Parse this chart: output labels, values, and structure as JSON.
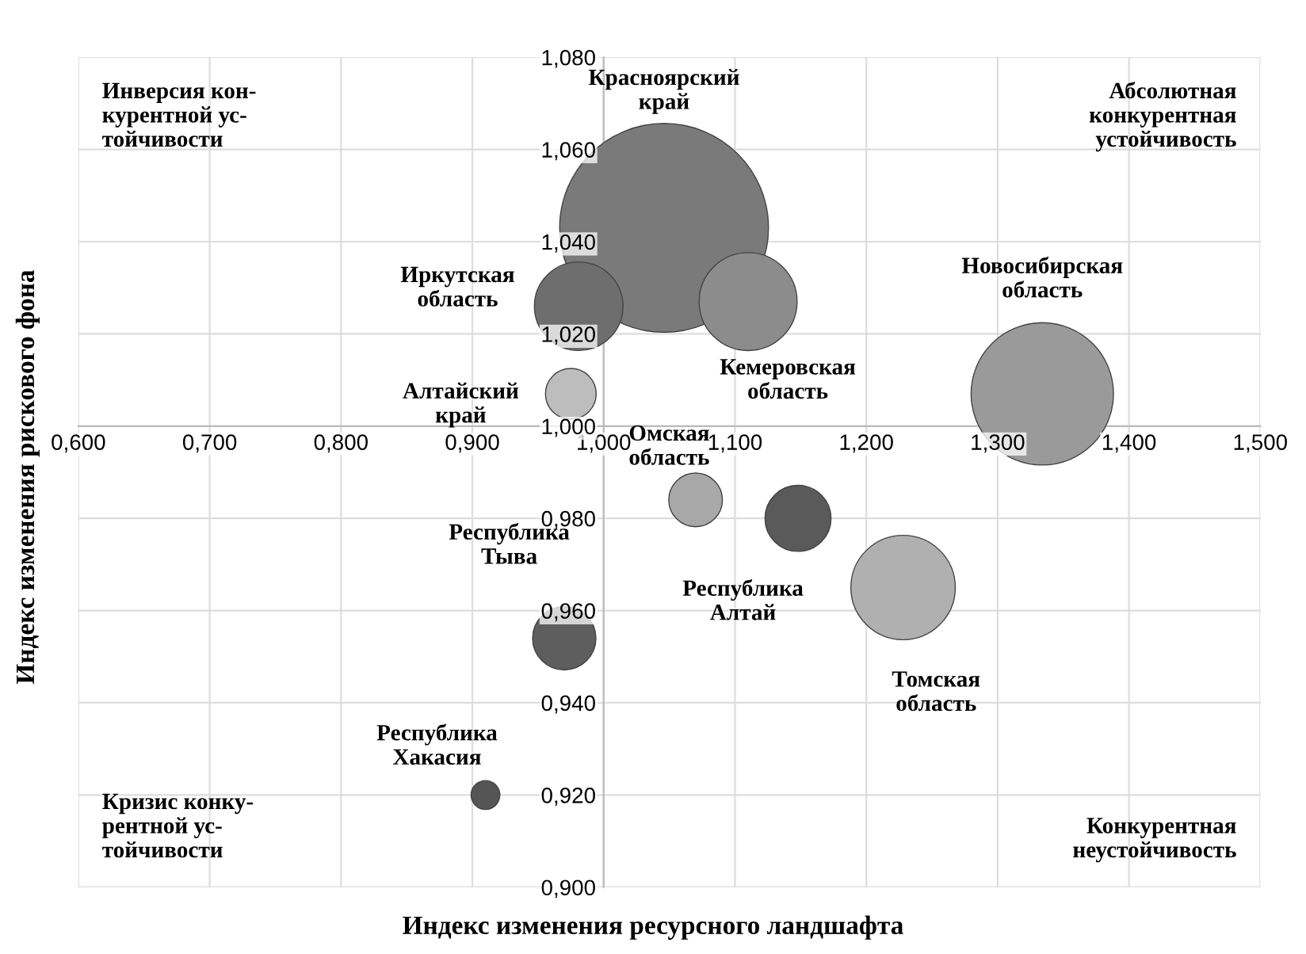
{
  "chart_data": {
    "type": "bubble",
    "xlabel": "Индекс изменения ресурсного ландшафта",
    "ylabel": "Индекс изменения рискового фона",
    "xlim": [
      0.6,
      1.5
    ],
    "xticks": [
      {
        "value": 0.6,
        "label": "0,600"
      },
      {
        "value": 0.7,
        "label": "0,700"
      },
      {
        "value": 0.8,
        "label": "0,800"
      },
      {
        "value": 0.9,
        "label": "0,900"
      },
      {
        "value": 1.0,
        "label": "1,000"
      },
      {
        "value": 1.1,
        "label": "1,100"
      },
      {
        "value": 1.2,
        "label": "1,200"
      },
      {
        "value": 1.3,
        "label": "1,300"
      },
      {
        "value": 1.4,
        "label": "1,400"
      },
      {
        "value": 1.5,
        "label": "1,500"
      }
    ],
    "ylim": [
      0.9,
      1.08
    ],
    "yticks": [
      {
        "value": 0.9,
        "label": "0,900"
      },
      {
        "value": 0.92,
        "label": "0,920"
      },
      {
        "value": 0.94,
        "label": "0,940"
      },
      {
        "value": 0.96,
        "label": "0,960"
      },
      {
        "value": 0.98,
        "label": "0,980"
      },
      {
        "value": 1.0,
        "label": "1,000"
      },
      {
        "value": 1.02,
        "label": "1,020"
      },
      {
        "value": 1.04,
        "label": "1,040"
      },
      {
        "value": 1.06,
        "label": "1,060"
      },
      {
        "value": 1.08,
        "label": "1,080"
      }
    ],
    "grid": true,
    "legend": false,
    "annotations": [
      "Инверсия кон-\nкурентной ус-\nтойчивости",
      "Абсолютная\nконкурентная\nустойчивость",
      "Кризис конку-\nрентной ус-\nтойчивости",
      "Конкурентная\nнеустойчивость"
    ],
    "series": [
      {
        "name": "Красноярский\nкрай",
        "color": "#7a7a7a",
        "x": [
          1.046
        ],
        "values": [
          1.043
        ],
        "sizes": [
          1
        ]
      },
      {
        "name": "Иркутская\nобласть",
        "color": "#6e6e6e",
        "x": [
          0.981
        ],
        "values": [
          1.026
        ],
        "sizes": [
          0.18
        ]
      },
      {
        "name": "Кемеровская\nобласть",
        "color": "#8c8c8c",
        "x": [
          1.11
        ],
        "values": [
          1.027
        ],
        "sizes": [
          0.22
        ]
      },
      {
        "name": "Алтайский\nкрай",
        "color": "#bdbdbd",
        "x": [
          0.975
        ],
        "values": [
          1.007
        ],
        "sizes": [
          0.059
        ]
      },
      {
        "name": "Новосибирская\nобласть",
        "color": "#9a9a9a",
        "x": [
          1.334
        ],
        "values": [
          1.007
        ],
        "sizes": [
          0.465
        ]
      },
      {
        "name": "Омская\nобласть",
        "color": "#a8a8a8",
        "x": [
          1.07
        ],
        "values": [
          0.984
        ],
        "sizes": [
          0.066
        ]
      },
      {
        "name": "Республика\nАлтай",
        "color": "#5a5a5a",
        "x": [
          1.148
        ],
        "values": [
          0.98
        ],
        "sizes": [
          0.1
        ]
      },
      {
        "name": "Томская\nобласть",
        "color": "#b0b0b0",
        "x": [
          1.228
        ],
        "values": [
          0.965
        ],
        "sizes": [
          0.25
        ]
      },
      {
        "name": "Республика\nТыва",
        "color": "#5e5e5e",
        "x": [
          0.97
        ],
        "values": [
          0.954
        ],
        "sizes": [
          0.092
        ]
      },
      {
        "name": "Республика\nХакасия",
        "color": "#555555",
        "x": [
          0.91
        ],
        "values": [
          0.92
        ],
        "sizes": [
          0.019
        ]
      }
    ]
  }
}
